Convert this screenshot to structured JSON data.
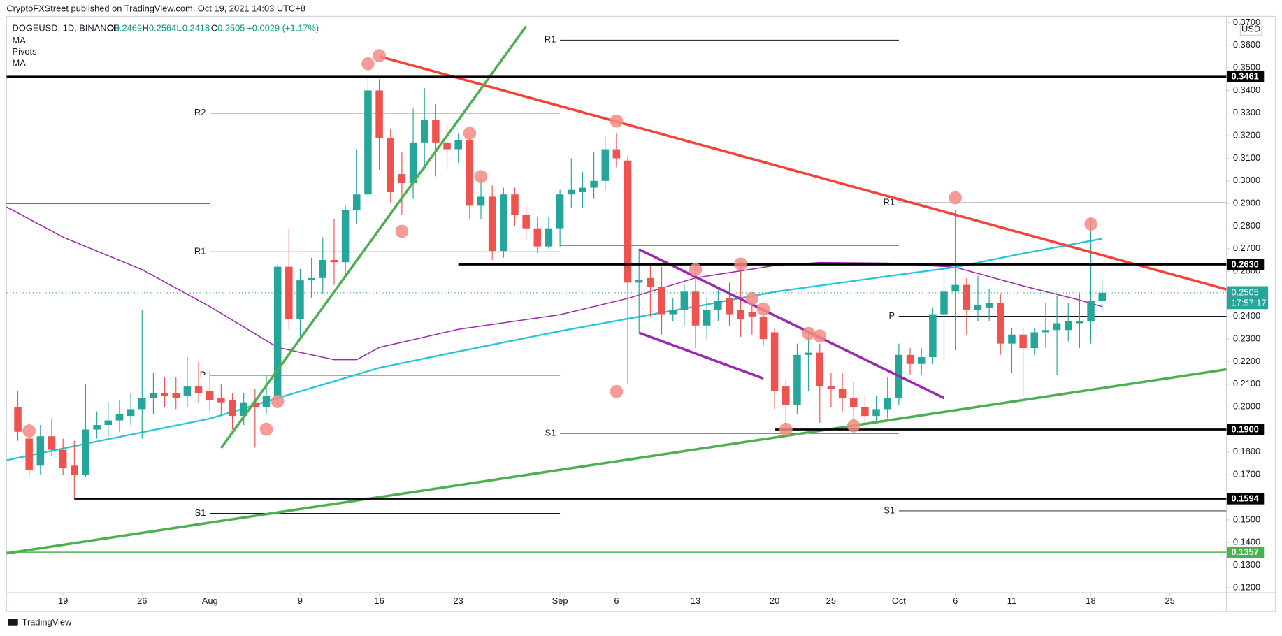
{
  "attribution": "CryptoFXStreet published on TradingView.com, Oct 19, 2021 14:03 UTC+8",
  "footer": "TradingView",
  "chart_data": {
    "type": "candlestick",
    "symbol": "DOGEUSD, 1D, BINANCE",
    "ohlc_labels": [
      "O",
      "H",
      "L",
      "C"
    ],
    "change": "+0.0029 (+1.17%)",
    "currency": "USD",
    "countdown": "17:57:17",
    "up_color": "#26a69a",
    "down_color": "#ef5350",
    "x": [
      "2021-07-15",
      "2021-07-16",
      "2021-07-17",
      "2021-07-18",
      "2021-07-19",
      "2021-07-20",
      "2021-07-21",
      "2021-07-22",
      "2021-07-23",
      "2021-07-24",
      "2021-07-25",
      "2021-07-26",
      "2021-07-27",
      "2021-07-28",
      "2021-07-29",
      "2021-07-30",
      "2021-07-31",
      "2021-08-01",
      "2021-08-02",
      "2021-08-03",
      "2021-08-04",
      "2021-08-05",
      "2021-08-06",
      "2021-08-07",
      "2021-08-08",
      "2021-08-09",
      "2021-08-10",
      "2021-08-11",
      "2021-08-12",
      "2021-08-13",
      "2021-08-14",
      "2021-08-15",
      "2021-08-16",
      "2021-08-17",
      "2021-08-18",
      "2021-08-19",
      "2021-08-20",
      "2021-08-21",
      "2021-08-22",
      "2021-08-23",
      "2021-08-24",
      "2021-08-25",
      "2021-08-26",
      "2021-08-27",
      "2021-08-28",
      "2021-08-29",
      "2021-08-30",
      "2021-08-31",
      "2021-09-01",
      "2021-09-02",
      "2021-09-03",
      "2021-09-04",
      "2021-09-05",
      "2021-09-06",
      "2021-09-07",
      "2021-09-08",
      "2021-09-09",
      "2021-09-10",
      "2021-09-11",
      "2021-09-12",
      "2021-09-13",
      "2021-09-14",
      "2021-09-15",
      "2021-09-16",
      "2021-09-17",
      "2021-09-18",
      "2021-09-19",
      "2021-09-20",
      "2021-09-21",
      "2021-09-22",
      "2021-09-23",
      "2021-09-24",
      "2021-09-25",
      "2021-09-26",
      "2021-09-27",
      "2021-09-28",
      "2021-09-29",
      "2021-09-30",
      "2021-10-01",
      "2021-10-02",
      "2021-10-03",
      "2021-10-04",
      "2021-10-05",
      "2021-10-06",
      "2021-10-07",
      "2021-10-08",
      "2021-10-09",
      "2021-10-10",
      "2021-10-11",
      "2021-10-12",
      "2021-10-13",
      "2021-10-14",
      "2021-10-15",
      "2021-10-16",
      "2021-10-17",
      "2021-10-18",
      "2021-10-19"
    ],
    "open": [
      0.2,
      0.186,
      0.174,
      0.187,
      0.181,
      0.174,
      0.17,
      0.19,
      0.192,
      0.194,
      0.196,
      0.199,
      0.204,
      0.206,
      0.206,
      0.205,
      0.209,
      0.207,
      0.204,
      0.203,
      0.196,
      0.202,
      0.2,
      0.205,
      0.262,
      0.239,
      0.256,
      0.257,
      0.265,
      0.264,
      0.287,
      0.294,
      0.34,
      0.319,
      0.303,
      0.299,
      0.317,
      0.327,
      0.317,
      0.314,
      0.318,
      0.289,
      0.293,
      0.269,
      0.294,
      0.285,
      0.279,
      0.271,
      0.279,
      0.294,
      0.295,
      0.297,
      0.3,
      0.314,
      0.309,
      0.255,
      0.257,
      0.253,
      0.241,
      0.243,
      0.251,
      0.236,
      0.243,
      0.248,
      0.243,
      0.242,
      0.24,
      0.233,
      0.209,
      0.201,
      0.223,
      0.224,
      0.209,
      0.208,
      0.204,
      0.2,
      0.196,
      0.199,
      0.204,
      0.223,
      0.219,
      0.222,
      0.241,
      0.251,
      0.254,
      0.243,
      0.244,
      0.246,
      0.228,
      0.232,
      0.226,
      0.233,
      0.234,
      0.234,
      0.237,
      0.238,
      0.2469
    ],
    "high": [
      0.207,
      0.19,
      0.192,
      0.195,
      0.186,
      0.185,
      0.21,
      0.198,
      0.202,
      0.203,
      0.206,
      0.243,
      0.215,
      0.213,
      0.213,
      0.222,
      0.22,
      0.216,
      0.21,
      0.206,
      0.206,
      0.208,
      0.214,
      0.263,
      0.279,
      0.261,
      0.266,
      0.275,
      0.283,
      0.289,
      0.314,
      0.346,
      0.345,
      0.323,
      0.313,
      0.332,
      0.341,
      0.334,
      0.325,
      0.321,
      0.32,
      0.301,
      0.298,
      0.297,
      0.297,
      0.289,
      0.284,
      0.284,
      0.296,
      0.31,
      0.304,
      0.313,
      0.32,
      0.321,
      0.311,
      0.27,
      0.263,
      0.262,
      0.248,
      0.254,
      0.261,
      0.248,
      0.252,
      0.255,
      0.263,
      0.247,
      0.244,
      0.235,
      0.212,
      0.228,
      0.233,
      0.228,
      0.215,
      0.215,
      0.211,
      0.205,
      0.205,
      0.213,
      0.228,
      0.226,
      0.226,
      0.244,
      0.264,
      0.287,
      0.257,
      0.258,
      0.252,
      0.25,
      0.235,
      0.235,
      0.235,
      0.246,
      0.249,
      0.246,
      0.25,
      0.283,
      0.2564
    ],
    "low": [
      0.185,
      0.169,
      0.17,
      0.178,
      0.17,
      0.1594,
      0.169,
      0.186,
      0.187,
      0.189,
      0.192,
      0.186,
      0.197,
      0.2,
      0.199,
      0.2,
      0.202,
      0.198,
      0.197,
      0.19,
      0.192,
      0.182,
      0.197,
      0.201,
      0.234,
      0.231,
      0.248,
      0.25,
      0.254,
      0.258,
      0.281,
      0.293,
      0.305,
      0.29,
      0.285,
      0.292,
      0.305,
      0.302,
      0.305,
      0.308,
      0.283,
      0.283,
      0.265,
      0.266,
      0.28,
      0.274,
      0.268,
      0.27,
      0.271,
      0.288,
      0.288,
      0.292,
      0.296,
      0.306,
      0.21,
      0.233,
      0.24,
      0.232,
      0.238,
      0.236,
      0.226,
      0.23,
      0.238,
      0.236,
      0.231,
      0.232,
      0.227,
      0.199,
      0.19,
      0.197,
      0.207,
      0.193,
      0.2,
      0.198,
      0.193,
      0.192,
      0.193,
      0.195,
      0.201,
      0.214,
      0.214,
      0.219,
      0.22,
      0.225,
      0.232,
      0.238,
      0.238,
      0.223,
      0.215,
      0.205,
      0.223,
      0.226,
      0.214,
      0.229,
      0.226,
      0.228,
      0.2418
    ],
    "close": [
      0.189,
      0.172,
      0.187,
      0.181,
      0.173,
      0.17,
      0.19,
      0.192,
      0.194,
      0.197,
      0.199,
      0.204,
      0.206,
      0.205,
      0.204,
      0.209,
      0.206,
      0.203,
      0.202,
      0.196,
      0.202,
      0.2,
      0.205,
      0.262,
      0.239,
      0.256,
      0.257,
      0.265,
      0.264,
      0.287,
      0.294,
      0.34,
      0.319,
      0.295,
      0.299,
      0.317,
      0.327,
      0.317,
      0.314,
      0.318,
      0.289,
      0.293,
      0.269,
      0.294,
      0.285,
      0.279,
      0.271,
      0.279,
      0.294,
      0.296,
      0.297,
      0.3,
      0.314,
      0.31,
      0.255,
      0.256,
      0.253,
      0.241,
      0.243,
      0.251,
      0.236,
      0.243,
      0.247,
      0.241,
      0.239,
      0.24,
      0.23,
      0.207,
      0.201,
      0.223,
      0.224,
      0.209,
      0.208,
      0.204,
      0.2,
      0.196,
      0.199,
      0.204,
      0.223,
      0.219,
      0.222,
      0.241,
      0.251,
      0.254,
      0.243,
      0.245,
      0.246,
      0.228,
      0.232,
      0.226,
      0.233,
      0.234,
      0.237,
      0.238,
      0.238,
      0.2469,
      0.2505
    ],
    "xlim": [
      "2021-07-14",
      "2021-10-30"
    ],
    "xticks": [
      {
        "value": "2021-07-19",
        "label": "19"
      },
      {
        "value": "2021-07-26",
        "label": "26"
      },
      {
        "value": "2021-08-01",
        "label": "Aug"
      },
      {
        "value": "2021-08-09",
        "label": "9"
      },
      {
        "value": "2021-08-16",
        "label": "16"
      },
      {
        "value": "2021-08-23",
        "label": "23"
      },
      {
        "value": "2021-09-01",
        "label": "Sep"
      },
      {
        "value": "2021-09-06",
        "label": "6"
      },
      {
        "value": "2021-09-13",
        "label": "13"
      },
      {
        "value": "2021-09-20",
        "label": "20"
      },
      {
        "value": "2021-09-25",
        "label": "25"
      },
      {
        "value": "2021-10-01",
        "label": "Oct"
      },
      {
        "value": "2021-10-06",
        "label": "6"
      },
      {
        "value": "2021-10-11",
        "label": "11"
      },
      {
        "value": "2021-10-18",
        "label": "18"
      },
      {
        "value": "2021-10-25",
        "label": "25"
      }
    ],
    "ylim": [
      0.1178,
      0.3728
    ],
    "yticks": [
      {
        "value": 0.12,
        "label": "0.1200"
      },
      {
        "value": 0.13,
        "label": "0.1300"
      },
      {
        "value": 0.14,
        "label": "0.1400"
      },
      {
        "value": 0.15,
        "label": "0.1500"
      },
      {
        "value": 0.16,
        "label": "0.1600"
      },
      {
        "value": 0.17,
        "label": "0.1700"
      },
      {
        "value": 0.18,
        "label": "0.1800"
      },
      {
        "value": 0.19,
        "label": "0.1900"
      },
      {
        "value": 0.2,
        "label": "0.2000"
      },
      {
        "value": 0.21,
        "label": "0.2100"
      },
      {
        "value": 0.22,
        "label": "0.2200"
      },
      {
        "value": 0.23,
        "label": "0.2300"
      },
      {
        "value": 0.24,
        "label": "0.2400"
      },
      {
        "value": 0.25,
        "label": "0.2500"
      },
      {
        "value": 0.26,
        "label": "0.2600"
      },
      {
        "value": 0.27,
        "label": "0.2700"
      },
      {
        "value": 0.28,
        "label": "0.2800"
      },
      {
        "value": 0.29,
        "label": "0.2900"
      },
      {
        "value": 0.3,
        "label": "0.3000"
      },
      {
        "value": 0.31,
        "label": "0.3100"
      },
      {
        "value": 0.32,
        "label": "0.3200"
      },
      {
        "value": 0.33,
        "label": "0.3300"
      },
      {
        "value": 0.34,
        "label": "0.3400"
      },
      {
        "value": 0.35,
        "label": "0.3500"
      },
      {
        "value": 0.36,
        "label": "0.3600"
      },
      {
        "value": 0.37,
        "label": "0.3700"
      }
    ],
    "indicators": [
      {
        "name": "MA",
        "color": "#9c27b0",
        "x": [
          "2021-07-14",
          "2021-07-19",
          "2021-07-26",
          "2021-08-01",
          "2021-08-07",
          "2021-08-12",
          "2021-08-14",
          "2021-08-16",
          "2021-08-23",
          "2021-09-01",
          "2021-09-07",
          "2021-09-13",
          "2021-09-20",
          "2021-09-24",
          "2021-09-30",
          "2021-10-06",
          "2021-10-12",
          "2021-10-17",
          "2021-10-19"
        ],
        "values": [
          0.2885,
          0.2751,
          0.2607,
          0.2444,
          0.2263,
          0.2209,
          0.2209,
          0.2263,
          0.2343,
          0.2408,
          0.248,
          0.2571,
          0.2625,
          0.2639,
          0.2636,
          0.2618,
          0.2535,
          0.2473,
          0.2444
        ]
      },
      {
        "name": "Pivots",
        "color": "#131722",
        "levels": [
          {
            "value": 0.29,
            "from": "2021-07-14",
            "to": "2021-08-01"
          },
          {
            "label": "R2",
            "value": 0.33,
            "from": "2021-08-01",
            "to": "2021-09-01"
          },
          {
            "label": "R1",
            "value": 0.2686,
            "from": "2021-08-01",
            "to": "2021-09-01"
          },
          {
            "label": "P",
            "value": 0.214,
            "from": "2021-08-01",
            "to": "2021-09-01"
          },
          {
            "label": "S1",
            "value": 0.1529,
            "from": "2021-08-01",
            "to": "2021-09-01"
          },
          {
            "label": "R1",
            "value": 0.3623,
            "from": "2021-09-01",
            "to": "2021-10-01"
          },
          {
            "value": 0.2715,
            "from": "2021-09-01",
            "to": "2021-10-01"
          },
          {
            "label": "S1",
            "value": 0.1883,
            "from": "2021-09-01",
            "to": "2021-10-01"
          },
          {
            "label": "R1",
            "value": 0.2903,
            "from": "2021-10-01",
            "to": "2021-10-30"
          },
          {
            "label": "P",
            "value": 0.2401,
            "from": "2021-10-01",
            "to": "2021-10-30"
          },
          {
            "label": "S1",
            "value": 0.154,
            "from": "2021-10-01",
            "to": "2021-10-30"
          }
        ]
      },
      {
        "name": "MA",
        "color": "#26c6da",
        "x": [
          "2021-07-14",
          "2021-07-22",
          "2021-08-01",
          "2021-08-07",
          "2021-08-16",
          "2021-08-23",
          "2021-09-01",
          "2021-09-07",
          "2021-09-13",
          "2021-09-20",
          "2021-09-30",
          "2021-10-06",
          "2021-10-12",
          "2021-10-19"
        ],
        "values": [
          0.1764,
          0.1847,
          0.1948,
          0.2039,
          0.2173,
          0.2245,
          0.2335,
          0.239,
          0.2444,
          0.2509,
          0.2578,
          0.2618,
          0.2679,
          0.2744
        ]
      }
    ],
    "levels": [
      {
        "value": 0.3461,
        "from": "2021-07-14",
        "color": "#000000"
      },
      {
        "value": {
          "value": 0.263,
          "label": "0.2630"
        },
        "from": "2021-08-23",
        "color": "#000000"
      },
      {
        "value": {
          "value": 0.19,
          "label": "0.1900"
        },
        "from": "2021-09-20",
        "color": "#000000"
      },
      {
        "value": 0.1594,
        "from": "2021-07-20",
        "color": "#000000"
      },
      {
        "value": 0.1357,
        "from": "2021-07-14",
        "color": "#4caf50"
      }
    ],
    "trendlines": [
      {
        "color": "#f44336",
        "from": {
          "x": "2021-08-16",
          "y": 0.3551
        },
        "to": {
          "x": "2021-10-30",
          "y": 0.252
        }
      },
      {
        "color": "#4caf50",
        "from": {
          "x": "2021-07-14",
          "y": 0.1352
        },
        "to": {
          "x": "2021-10-30",
          "y": 0.2166
        }
      },
      {
        "color": "#4caf50",
        "from": {
          "x": "2021-08-02",
          "y": 0.1818
        },
        "to": {
          "x": "2021-08-29",
          "y": 0.3684
        }
      },
      {
        "color": "#9c27b0",
        "from": {
          "x": "2021-09-08",
          "y": 0.2697
        },
        "to": {
          "x": "2021-10-05",
          "y": 0.2039
        }
      },
      {
        "color": "#9c27b0",
        "from": {
          "x": "2021-09-08",
          "y": 0.2328
        },
        "to": {
          "x": "2021-09-19",
          "y": 0.2126
        }
      }
    ],
    "markers": {
      "color": "#f28b82",
      "x": [
        "2021-07-16",
        "2021-08-06",
        "2021-08-07",
        "2021-08-15",
        "2021-08-16",
        "2021-08-18",
        "2021-08-24",
        "2021-08-25",
        "2021-09-06",
        "2021-09-06",
        "2021-09-13",
        "2021-09-17",
        "2021-09-18",
        "2021-09-19",
        "2021-09-21",
        "2021-09-23",
        "2021-09-24",
        "2021-09-27",
        "2021-10-06",
        "2021-10-18"
      ],
      "values": [
        0.1894,
        0.1901,
        0.2024,
        0.3518,
        0.3554,
        0.2777,
        0.3211,
        0.3019,
        0.3265,
        0.2068,
        0.2607,
        0.2632,
        0.248,
        0.2433,
        0.1901,
        0.2325,
        0.2314,
        0.1916,
        0.2925,
        0.2809
      ]
    }
  }
}
